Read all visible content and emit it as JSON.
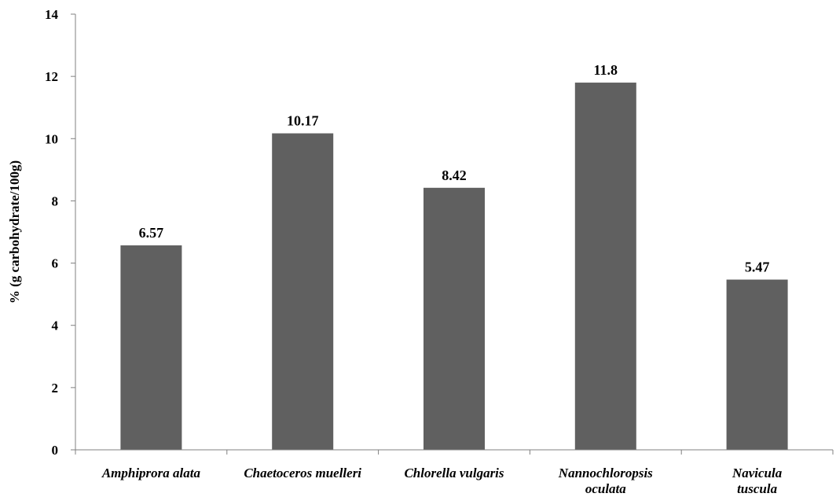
{
  "chart_data": {
    "type": "bar",
    "categories": [
      [
        "Amphiprora alata"
      ],
      [
        "Chaetoceros muelleri"
      ],
      [
        "Chlorella vulgaris"
      ],
      [
        "Nannochloropsis",
        "oculata"
      ],
      [
        "Navicula",
        "tuscula"
      ]
    ],
    "values": [
      6.57,
      10.17,
      8.42,
      11.8,
      5.47
    ],
    "value_labels": [
      "6.57",
      "10.17",
      "8.42",
      "11.8",
      "5.47"
    ],
    "title": "",
    "xlabel": "",
    "ylabel": "% (g carbohydrate/100g)",
    "ylim": [
      0,
      14
    ],
    "yticks": [
      0,
      2,
      4,
      6,
      8,
      10,
      12,
      14
    ],
    "grid": false,
    "legend": "none",
    "bar_color": "#606060",
    "axis_color": "#808080"
  }
}
